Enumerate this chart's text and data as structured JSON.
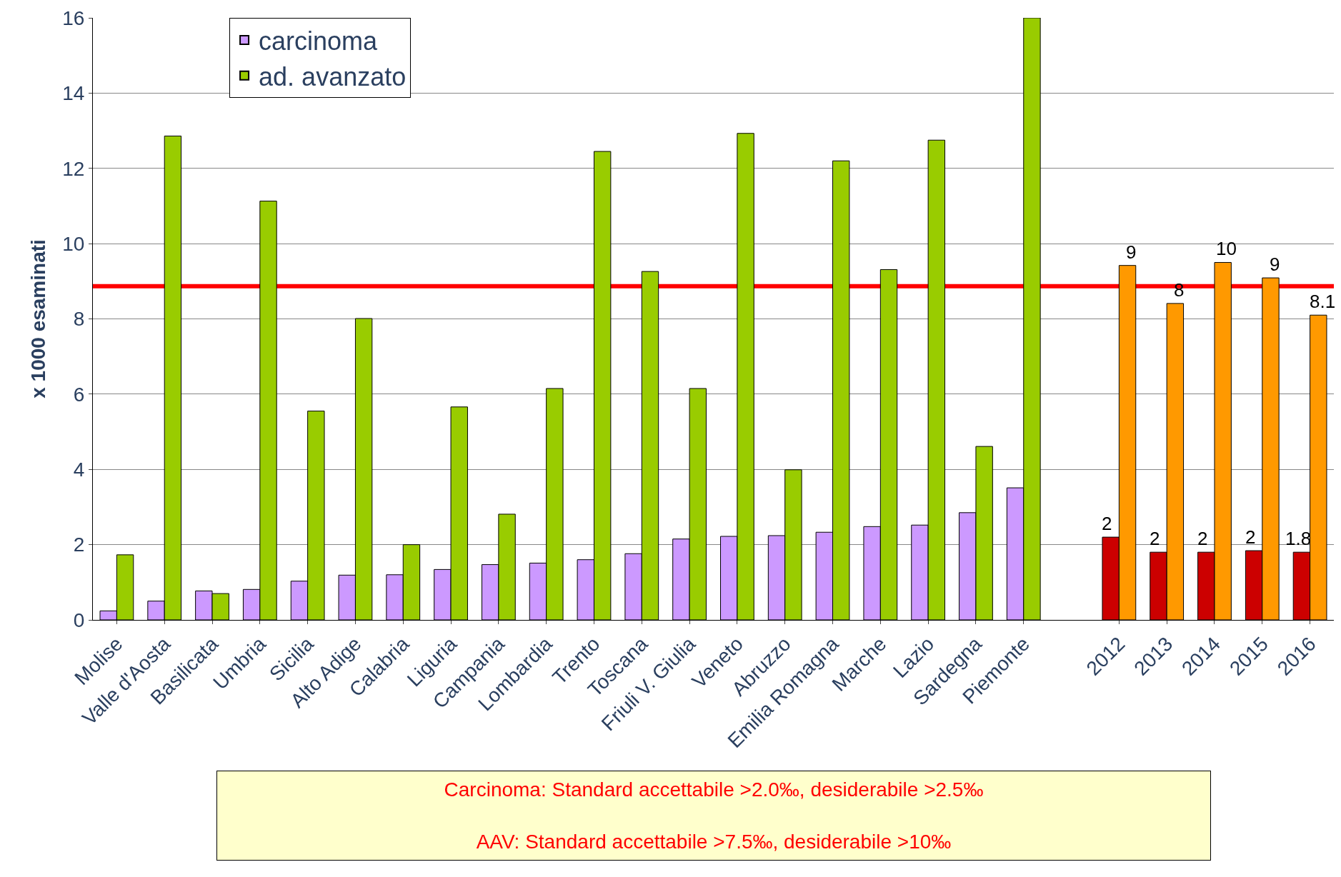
{
  "chart_data": {
    "type": "bar",
    "ylabel": "x 1000 esaminati",
    "categories": [
      "Molise",
      "Valle d'Aosta",
      "Basilicata",
      "Umbria",
      "Sicilia",
      "Alto Adige",
      "Calabria",
      "Liguria",
      "Campania",
      "Lombardia",
      "Trento",
      "Toscana",
      "Friuli V. Giulia",
      "Veneto",
      "Abruzzo",
      "Emilia Romagna",
      "Marche",
      "Lazio",
      "Sardegna",
      "Piemonte",
      null,
      "2012",
      "2013",
      "2014",
      "2015",
      "2016"
    ],
    "series": [
      {
        "name": "carcinoma",
        "colors": [
          "#cc99ff",
          "#cc99ff",
          "#cc99ff",
          "#cc99ff",
          "#cc99ff",
          "#cc99ff",
          "#cc99ff",
          "#cc99ff",
          "#cc99ff",
          "#cc99ff",
          "#cc99ff",
          "#cc99ff",
          "#cc99ff",
          "#cc99ff",
          "#cc99ff",
          "#cc99ff",
          "#cc99ff",
          "#cc99ff",
          "#cc99ff",
          "#cc99ff",
          "#cc99ff",
          "#cc0000",
          "#cc0000",
          "#cc0000",
          "#cc0000",
          "#cc0000"
        ],
        "values": [
          0.24,
          0.5,
          0.77,
          0.81,
          1.03,
          1.19,
          1.2,
          1.34,
          1.47,
          1.51,
          1.6,
          1.76,
          2.15,
          2.22,
          2.24,
          2.33,
          2.48,
          2.52,
          2.85,
          3.51,
          null,
          2.2,
          1.8,
          1.8,
          1.84,
          1.8
        ],
        "value_labels": [
          null,
          null,
          null,
          null,
          null,
          null,
          null,
          null,
          null,
          null,
          null,
          null,
          null,
          null,
          null,
          null,
          null,
          null,
          null,
          null,
          null,
          "2",
          "2",
          "2",
          "2",
          "1.8"
        ]
      },
      {
        "name": "ad. avanzato",
        "colors": [
          "#99cc00",
          "#99cc00",
          "#99cc00",
          "#99cc00",
          "#99cc00",
          "#99cc00",
          "#99cc00",
          "#99cc00",
          "#99cc00",
          "#99cc00",
          "#99cc00",
          "#99cc00",
          "#99cc00",
          "#99cc00",
          "#99cc00",
          "#99cc00",
          "#99cc00",
          "#99cc00",
          "#99cc00",
          "#99cc00",
          "#99cc00",
          "#ff9900",
          "#ff9900",
          "#ff9900",
          "#ff9900",
          "#ff9900"
        ],
        "values": [
          1.73,
          12.86,
          0.7,
          11.13,
          5.55,
          8.01,
          2.0,
          5.66,
          2.81,
          6.15,
          12.45,
          9.26,
          6.15,
          12.93,
          3.99,
          12.2,
          9.31,
          12.75,
          4.61,
          16,
          null,
          9.42,
          8.41,
          9.5,
          9.09,
          8.1
        ],
        "value_labels": [
          null,
          null,
          null,
          null,
          null,
          null,
          null,
          null,
          null,
          null,
          null,
          null,
          null,
          null,
          null,
          null,
          null,
          null,
          null,
          null,
          null,
          "9",
          "8",
          "10",
          "9",
          "8.1"
        ]
      }
    ],
    "ylim": [
      0,
      16
    ],
    "yticks": [
      0,
      2,
      4,
      6,
      8,
      10,
      12,
      14,
      16
    ],
    "grid": "y",
    "legend": "top left",
    "ref_lines": [
      {
        "axis": "y",
        "value": 8.87,
        "color": "#ff0000"
      }
    ],
    "annotations": [
      "Carcinoma: Standard accettabile >2.0‰, desiderabile >2.5‰",
      "AAV: Standard accettabile >7.5‰, desiderabile >10‰"
    ]
  }
}
